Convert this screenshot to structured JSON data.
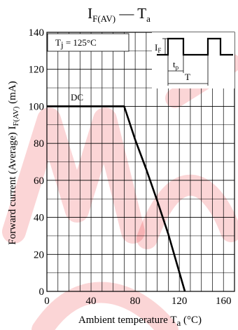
{
  "chart_data": {
    "type": "line",
    "title": {
      "base": "I",
      "sub": "F(AV)",
      "dash": "—",
      "base2": "T",
      "sub2": "a"
    },
    "xlabel": {
      "text": "Ambient temperature  T",
      "sub": "a",
      "unit": "(°C)"
    },
    "ylabel": {
      "text": "Forward current (Average)  I",
      "sub": "F(AV)",
      "unit": "(mA)"
    },
    "xlim": [
      0,
      170
    ],
    "ylim": [
      0,
      140
    ],
    "xticks": [
      0,
      40,
      80,
      120,
      160
    ],
    "yticks": [
      0,
      20,
      40,
      60,
      80,
      100,
      120,
      140
    ],
    "grid": true,
    "series": [
      {
        "name": "DC",
        "x": [
          0,
          70,
          80,
          90,
          100,
          110,
          125
        ],
        "y": [
          100,
          100,
          82,
          66,
          49,
          31,
          0
        ]
      }
    ],
    "annotations": {
      "series_label": "DC",
      "tj": {
        "text": "T",
        "sub": "j",
        "value": " = 125°C"
      },
      "inset": {
        "if": {
          "text": "I",
          "sub": "F"
        },
        "tp": {
          "text": "t",
          "sub": "p"
        },
        "t": "T"
      }
    },
    "watermark_color": "#e8141e"
  }
}
